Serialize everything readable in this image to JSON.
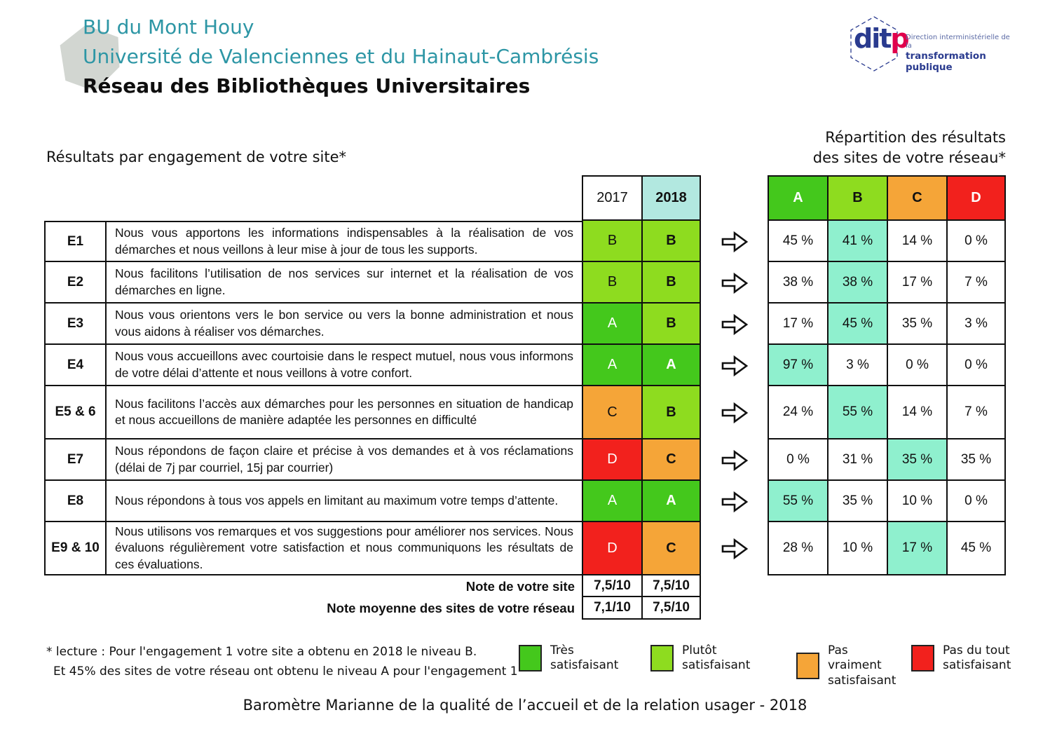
{
  "header": {
    "site_name": "BU du Mont Houy",
    "university": "Université de Valenciennes et du Hainaut-Cambrésis",
    "network": "Réseau des Bibliothèques Universitaires"
  },
  "logo": {
    "acronym_main": "dit",
    "acronym_accent": "p",
    "line1": "Direction interministérielle de la",
    "line2": "transformation publique"
  },
  "left_table": {
    "title": "Résultats par engagement de votre site*",
    "year_columns": [
      "2017",
      "2018"
    ],
    "score_rows": [
      {
        "label": "Note de votre site",
        "values": [
          "7,5/10",
          "7,5/10"
        ]
      },
      {
        "label": "Note moyenne des sites de votre réseau",
        "values": [
          "7,1/10",
          "7,5/10"
        ]
      }
    ]
  },
  "right_table": {
    "title_line1": "Répartition des résultats",
    "title_line2": "des sites de votre réseau*",
    "columns": [
      "A",
      "B",
      "C",
      "D"
    ]
  },
  "engagements": [
    {
      "id": "E1",
      "description": "Nous vous apportons les informations indispensables à la réalisation de vos démarches et nous veillons à leur mise à jour de tous les supports.",
      "grade_2017": "B",
      "grade_2018": "B",
      "distribution": [
        "45 %",
        "41 %",
        "14 %",
        "0 %"
      ],
      "highlight": "B"
    },
    {
      "id": "E2",
      "description": "Nous facilitons l’utilisation de nos services sur internet et la réalisation de vos démarches en ligne.",
      "grade_2017": "B",
      "grade_2018": "B",
      "distribution": [
        "38 %",
        "38 %",
        "17 %",
        "7 %"
      ],
      "highlight": "B"
    },
    {
      "id": "E3",
      "description": "Nous vous orientons vers le bon service ou vers la bonne administration et nous vous aidons à réaliser vos démarches.",
      "grade_2017": "A",
      "grade_2018": "B",
      "distribution": [
        "17 %",
        "45 %",
        "35 %",
        "3 %"
      ],
      "highlight": "B"
    },
    {
      "id": "E4",
      "description": "Nous vous accueillons avec courtoisie dans le respect mutuel, nous vous informons de votre délai d’attente et nous veillons à votre confort.",
      "grade_2017": "A",
      "grade_2018": "A",
      "distribution": [
        "97 %",
        "3 %",
        "0 %",
        "0 %"
      ],
      "highlight": "A"
    },
    {
      "id": "E5 & 6",
      "description": "Nous facilitons l’accès aux démarches pour les personnes en situation de handicap et nous accueillons de manière adaptée les personnes en difficulté",
      "grade_2017": "C",
      "grade_2018": "B",
      "distribution": [
        "24 %",
        "55 %",
        "14 %",
        "7 %"
      ],
      "highlight": "B"
    },
    {
      "id": "E7",
      "description": "Nous répondons de façon claire et précise à vos demandes et à vos réclamations (délai de 7j par courriel, 15j par courrier)",
      "grade_2017": "D",
      "grade_2018": "C",
      "distribution": [
        "0 %",
        "31 %",
        "35 %",
        "35 %"
      ],
      "highlight": "C"
    },
    {
      "id": "E8",
      "description": "Nous répondons à tous vos appels en limitant au maximum votre temps d’attente.",
      "grade_2017": "A",
      "grade_2018": "A",
      "distribution": [
        "55 %",
        "35 %",
        "10 %",
        "0 %"
      ],
      "highlight": "A"
    },
    {
      "id": "E9 & 10",
      "description": "Nous utilisons vos remarques et vos suggestions pour améliorer nos services. Nous évaluons régulièrement votre satisfaction et nous communiquons les résultats de ces évaluations.",
      "grade_2017": "D",
      "grade_2018": "C",
      "distribution": [
        "28 %",
        "10 %",
        "17 %",
        "45 %"
      ],
      "highlight": "C"
    }
  ],
  "footnote": {
    "line1": "* lecture : Pour l'engagement 1 votre site a obtenu en 2018 le niveau B.",
    "line2": "Et 45% des sites de votre réseau ont obtenu le niveau A pour l'engagement 1"
  },
  "legend": [
    {
      "label": "Très satisfaisant",
      "color": "#44c81c"
    },
    {
      "label": "Plutôt satisfaisant",
      "color": "#8edc1f"
    },
    {
      "label": "Pas vraiment\nsatisfaisant",
      "color": "#f5a538"
    },
    {
      "label": "Pas du tout\nsatisfaisant",
      "color": "#f2211d"
    }
  ],
  "footer": "Baromètre Marianne de la qualité de l’accueil et de la relation usager - 2018",
  "colors": {
    "teal": "#2d96a5",
    "grades": {
      "A": "#44c81c",
      "B": "#8edc1f",
      "C": "#f5a538",
      "D": "#f2211d"
    },
    "grade_text": {
      "A": "#ffffff",
      "B": "#111111",
      "C": "#111111",
      "D": "#ffffff"
    },
    "highlight_bg": "#8ff0ce",
    "header_2018_bg": "#b2e8e0",
    "logo_navy": "#2a3b8f",
    "logo_pink": "#e0004c"
  }
}
